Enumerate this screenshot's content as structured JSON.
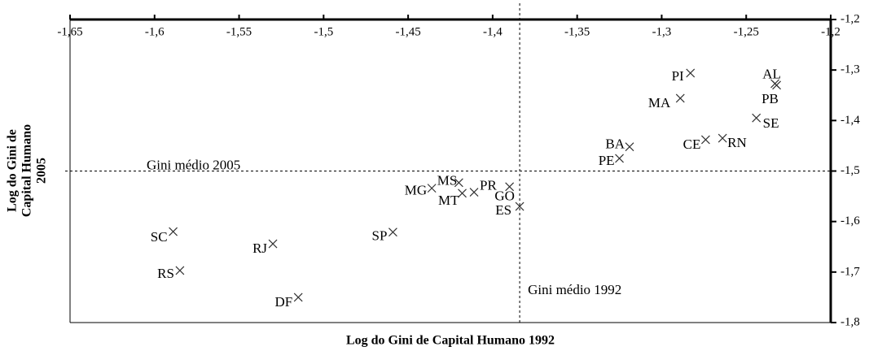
{
  "chart_data": {
    "type": "scatter",
    "xlabel": "Log do Gini de Capital Humano 1992",
    "ylabel": [
      "Log do Gini de",
      "Capital Humano",
      "2005"
    ],
    "xlim": [
      -1.65,
      -1.2
    ],
    "ylim": [
      -1.8,
      -1.2
    ],
    "xticks": [
      {
        "value": -1.65,
        "label": "-1,65"
      },
      {
        "value": -1.6,
        "label": "-1,6"
      },
      {
        "value": -1.55,
        "label": "-1,55"
      },
      {
        "value": -1.5,
        "label": "-1,5"
      },
      {
        "value": -1.45,
        "label": "-1,45"
      },
      {
        "value": -1.4,
        "label": "-1,4"
      },
      {
        "value": -1.35,
        "label": "-1,35"
      },
      {
        "value": -1.3,
        "label": "-1,3"
      },
      {
        "value": -1.25,
        "label": "-1,25"
      },
      {
        "value": -1.2,
        "label": "-1,2"
      }
    ],
    "yticks": [
      {
        "value": -1.2,
        "label": "-1,2"
      },
      {
        "value": -1.3,
        "label": "-1,3"
      },
      {
        "value": -1.4,
        "label": "-1,4"
      },
      {
        "value": -1.5,
        "label": "-1,5"
      },
      {
        "value": -1.6,
        "label": "-1,6"
      },
      {
        "value": -1.7,
        "label": "-1,7"
      },
      {
        "value": -1.8,
        "label": "-1,8"
      }
    ],
    "color": "#333333",
    "labels": [
      "PI",
      "AL",
      "PB",
      "MA",
      "SE",
      "CE",
      "RN",
      "BA",
      "PE",
      "MS",
      "MG",
      "MT",
      "PR",
      "GO",
      "ES",
      "SP",
      "SC",
      "RJ",
      "RS",
      "DF"
    ],
    "x": [
      -1.283,
      -1.232,
      -1.233,
      -1.289,
      -1.244,
      -1.274,
      -1.264,
      -1.319,
      -1.325,
      -1.42,
      -1.436,
      -1.418,
      -1.411,
      -1.39,
      -1.384,
      -1.459,
      -1.589,
      -1.53,
      -1.585,
      -1.515
    ],
    "values": [
      -1.306,
      -1.33,
      -1.327,
      -1.356,
      -1.395,
      -1.438,
      -1.435,
      -1.452,
      -1.475,
      -1.523,
      -1.534,
      -1.544,
      -1.542,
      -1.531,
      -1.57,
      -1.621,
      -1.62,
      -1.644,
      -1.697,
      -1.75
    ],
    "vline": {
      "value": -1.384,
      "label": "Gini médio 1992"
    },
    "hline": {
      "value": -1.5,
      "label": "Gini médio 2005"
    }
  }
}
